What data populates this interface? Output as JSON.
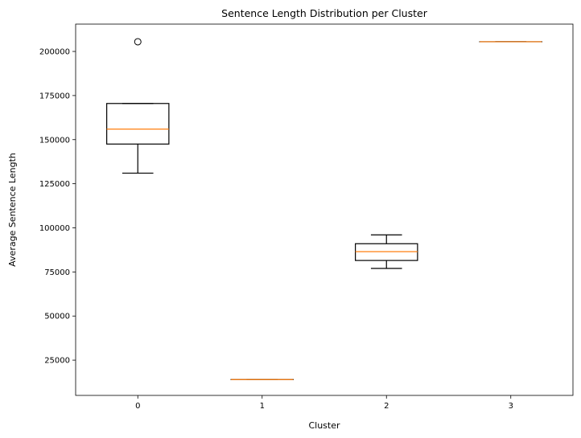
{
  "chart_data": {
    "type": "box",
    "title": "Sentence Length Distribution per Cluster",
    "xlabel": "Cluster",
    "ylabel": "Average Sentence Length",
    "categories": [
      "0",
      "1",
      "2",
      "3"
    ],
    "ylim": [
      5000,
      215500
    ],
    "yticks": [
      25000,
      50000,
      75000,
      100000,
      125000,
      150000,
      175000,
      200000
    ],
    "ytick_labels": [
      "25000",
      "50000",
      "75000",
      "100000",
      "125000",
      "150000",
      "175000",
      "200000"
    ],
    "grid": false,
    "legend": "none",
    "boxes": [
      {
        "category": "0",
        "whisker_low": 131000,
        "q1": 147500,
        "median": 156000,
        "q3": 170500,
        "whisker_high": 170500,
        "outliers": [
          205500
        ]
      },
      {
        "category": "1",
        "whisker_low": 14000,
        "q1": 14000,
        "median": 14000,
        "q3": 14000,
        "whisker_high": 14000,
        "outliers": []
      },
      {
        "category": "2",
        "whisker_low": 77000,
        "q1": 81500,
        "median": 86500,
        "q3": 91000,
        "whisker_high": 96000,
        "outliers": []
      },
      {
        "category": "3",
        "whisker_low": 205500,
        "q1": 205500,
        "median": 205500,
        "q3": 205500,
        "whisker_high": 205500,
        "outliers": []
      }
    ],
    "colors": {
      "box": "#000000",
      "median": "#ff7f0e",
      "outlier": "#000000"
    }
  }
}
